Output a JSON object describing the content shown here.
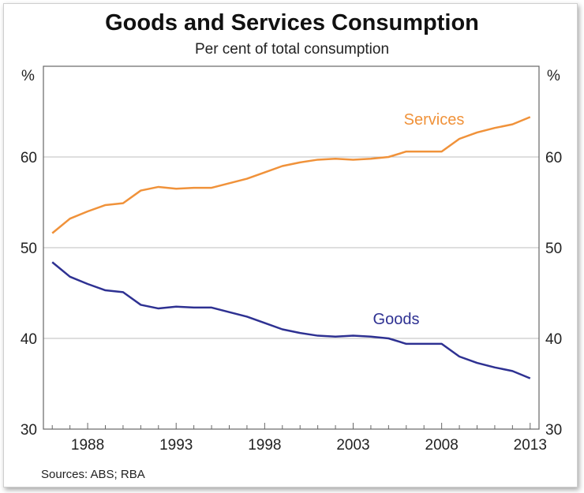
{
  "chart_data": {
    "type": "line",
    "title": "Goods and Services Consumption",
    "subtitle": "Per cent of total consumption",
    "ylabel_left": "%",
    "ylabel_right": "%",
    "ylim": [
      30,
      70
    ],
    "yticks": [
      30,
      40,
      50,
      60
    ],
    "xlim": [
      1985.5,
      2013.5
    ],
    "xticks": [
      1988,
      1993,
      1998,
      2003,
      2008,
      2013
    ],
    "grid": true,
    "x": [
      1986,
      1987,
      1988,
      1989,
      1990,
      1991,
      1992,
      1993,
      1994,
      1995,
      1996,
      1997,
      1998,
      1999,
      2000,
      2001,
      2002,
      2003,
      2004,
      2005,
      2006,
      2007,
      2008,
      2009,
      2010,
      2011,
      2012,
      2013
    ],
    "series": [
      {
        "name": "Services",
        "color": "#f0923a",
        "values": [
          51.6,
          53.2,
          54.0,
          54.7,
          54.9,
          56.3,
          56.7,
          56.5,
          56.6,
          56.6,
          57.1,
          57.6,
          58.3,
          59.0,
          59.4,
          59.7,
          59.8,
          59.7,
          59.8,
          60.0,
          60.6,
          60.6,
          60.6,
          62.0,
          62.7,
          63.2,
          63.6,
          64.4
        ]
      },
      {
        "name": "Goods",
        "color": "#2e3192",
        "values": [
          48.4,
          46.8,
          46.0,
          45.3,
          45.1,
          43.7,
          43.3,
          43.5,
          43.4,
          43.4,
          42.9,
          42.4,
          41.7,
          41.0,
          40.6,
          40.3,
          40.2,
          40.3,
          40.2,
          40.0,
          39.4,
          39.4,
          39.4,
          38.0,
          37.3,
          36.8,
          36.4,
          35.6
        ]
      }
    ],
    "source": "Sources: ABS; RBA"
  }
}
